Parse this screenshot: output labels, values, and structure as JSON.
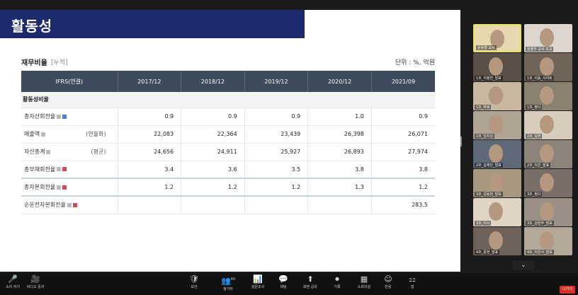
{
  "slide": {
    "title": "활동성",
    "financial": {
      "title": "재무비율",
      "subtitle": "[누적]",
      "unit": "단위 : %, 억원",
      "columns": [
        "IFRS(연결)",
        "2017/12",
        "2018/12",
        "2019/12",
        "2020/12",
        "2021/09"
      ],
      "section": "활동성비율",
      "rows": [
        {
          "label": "총자산회전율",
          "paren": "",
          "values": [
            "0.9",
            "0.9",
            "0.9",
            "1.0",
            "0.9"
          ]
        },
        {
          "label": "매출액",
          "paren": "(연율화)",
          "values": [
            "22,083",
            "22,364",
            "23,439",
            "26,398",
            "26,071"
          ]
        },
        {
          "label": "자산총계",
          "paren": "(평균)",
          "values": [
            "24,656",
            "24,911",
            "25,927",
            "26,893",
            "27,974"
          ]
        },
        {
          "label": "총부채회전율",
          "paren": "",
          "values": [
            "3.4",
            "3.6",
            "3.5",
            "3.8",
            "3.8"
          ]
        },
        {
          "label": "총자본회전율",
          "paren": "",
          "values": [
            "1.2",
            "1.2",
            "1.2",
            "1.3",
            "1.2"
          ]
        },
        {
          "label": "순운전자본회전율",
          "paren": "",
          "values": [
            "",
            "",
            "",
            "",
            "283.5"
          ]
        }
      ]
    }
  },
  "participants": [
    {
      "name": "윤용렬 교사",
      "bg": "#e8d8b0"
    },
    {
      "name": "윤영우 교사 조교",
      "bg": "#ded6ce"
    },
    {
      "name": "1조_지정연_발표",
      "bg": "#5a5048"
    },
    {
      "name": "1조_이동_사이트",
      "bg": "#706458"
    },
    {
      "name": "1조_박정",
      "bg": "#c8b8a0"
    },
    {
      "name": "1조_정다",
      "bg": "#8a8070"
    },
    {
      "name": "2조_임지성",
      "bg": "#b0a494"
    },
    {
      "name": "2조_김현",
      "bg": "#d8ccbc"
    },
    {
      "name": "2조_김재민_발표",
      "bg": "#5e6a78"
    },
    {
      "name": "2조_이은_발표",
      "bg": "#8c8478"
    },
    {
      "name": "3조_김동현_발표",
      "bg": "#a89880"
    },
    {
      "name": "3조_정다",
      "bg": "#7a6e66"
    },
    {
      "name": "3조_이시",
      "bg": "#e0d4c4"
    },
    {
      "name": "3조_김현주_발표",
      "bg": "#9a9086"
    },
    {
      "name": "4조_문현_발표",
      "bg": "#6e6258"
    },
    {
      "name": "4조_이민서_발표",
      "bg": "#b4a898"
    }
  ],
  "toolbar": {
    "items": [
      {
        "name": "mute-button",
        "icon": "🎤",
        "label": "소리 켜기"
      },
      {
        "name": "video-button",
        "icon": "🎥",
        "label": "비디오 중지"
      },
      {
        "name": "security-button",
        "icon": "🛡",
        "label": "보안"
      },
      {
        "name": "participants-button",
        "icon": "👥",
        "label": "참가자"
      },
      {
        "name": "polls-button",
        "icon": "📊",
        "label": "설문조사"
      },
      {
        "name": "chat-button",
        "icon": "💬",
        "label": "채팅"
      },
      {
        "name": "share-screen-button",
        "icon": "⬆",
        "label": "화면 공유"
      },
      {
        "name": "record-button",
        "icon": "⏺",
        "label": "기록"
      },
      {
        "name": "breakout-button",
        "icon": "▦",
        "label": "소회의실"
      },
      {
        "name": "reactions-button",
        "icon": "☺",
        "label": "반응"
      },
      {
        "name": "apps-button",
        "icon": "⚏",
        "label": "앱"
      }
    ],
    "leave_label": "나가기",
    "participant_count": "40"
  },
  "chevron": "⌄"
}
